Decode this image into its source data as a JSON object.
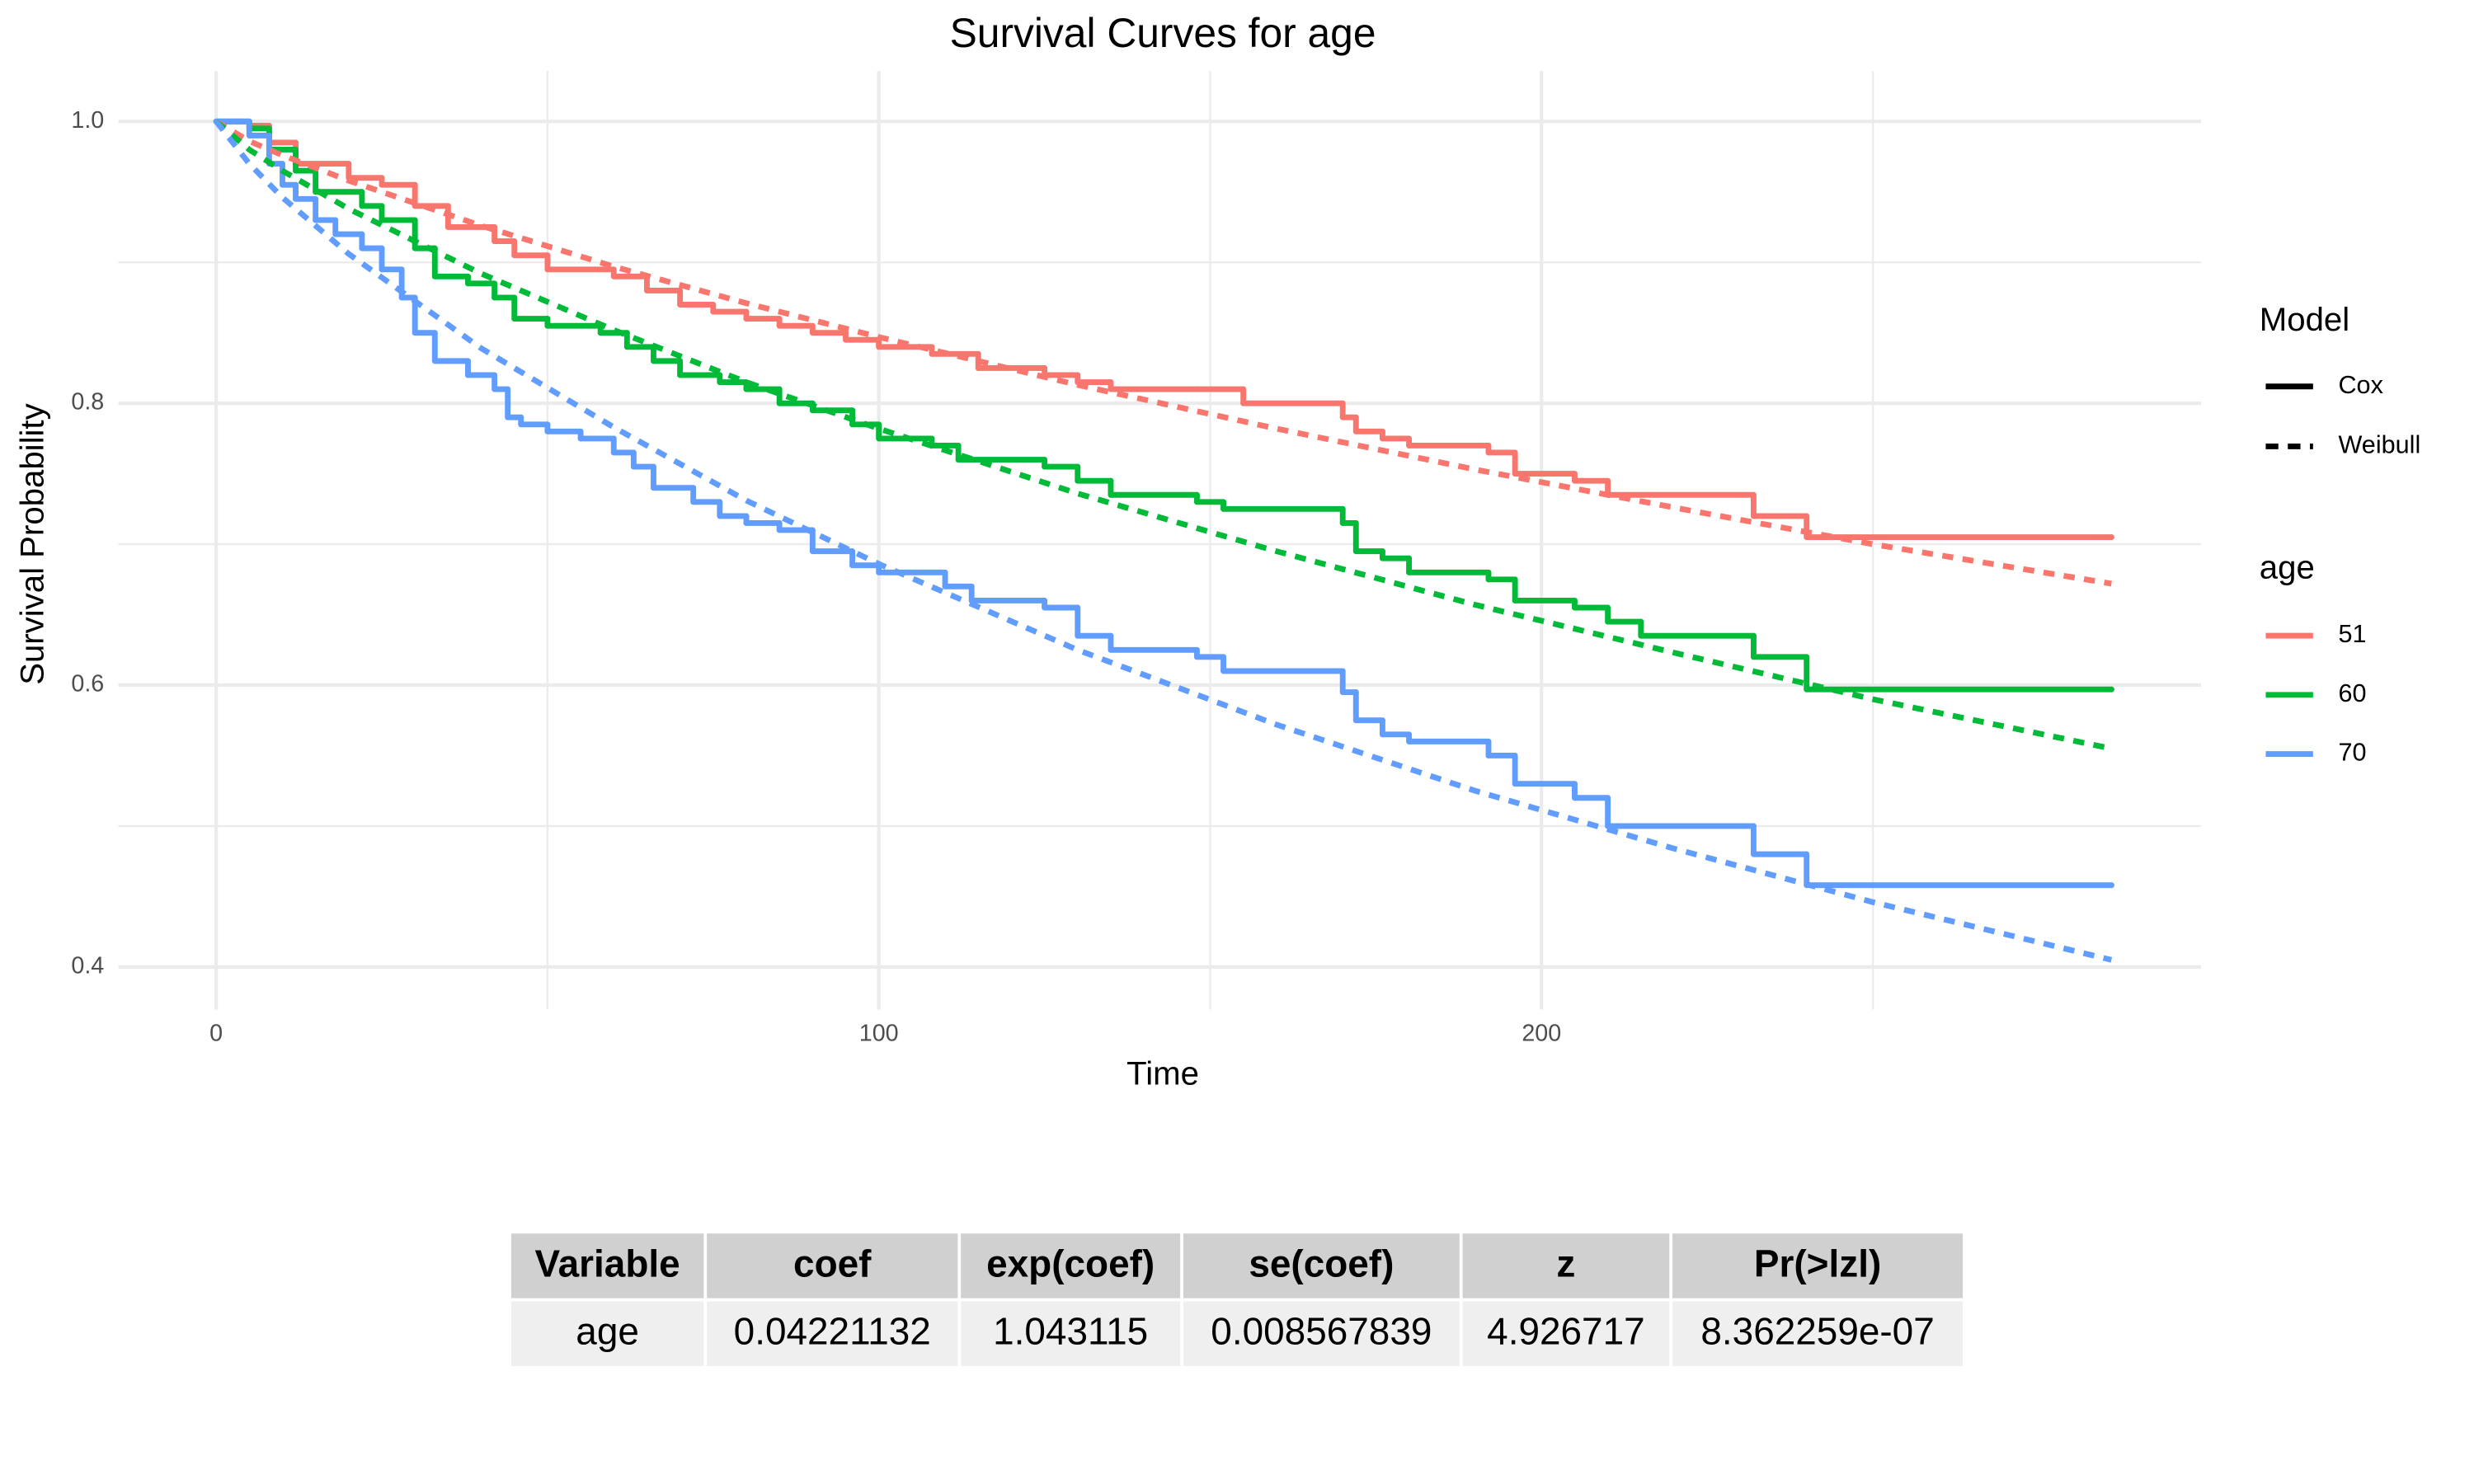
{
  "chart_data": {
    "type": "survival",
    "title": "Survival Curves for age",
    "x_label": "Time",
    "y_label": "Survival Probability",
    "xlim": [
      -14.76,
      299.52
    ],
    "ylim": [
      0.3698,
      1.0358
    ],
    "xticks": [
      0,
      100,
      200
    ],
    "yticks": [
      0.4,
      0.6,
      0.8,
      {
        "value": 1,
        "label": "1.0"
      }
    ],
    "minor_xticks": [
      50,
      150,
      250
    ],
    "minor_yticks": [
      0.5,
      0.7,
      0.9
    ],
    "grid": true,
    "legend": {
      "linetype_title": "Model",
      "linetypes": [
        {
          "label": "Cox",
          "dash": false
        },
        {
          "label": "Weibull",
          "dash": true
        }
      ],
      "color_title": "age",
      "colors": [
        {
          "label": "51",
          "color": "#F8766D"
        },
        {
          "label": "60",
          "color": "#00BA38"
        },
        {
          "label": "70",
          "color": "#619CFF"
        }
      ]
    },
    "series": [
      {
        "color": "#F8766D",
        "dash": false,
        "step": true,
        "x": [
          0,
          5,
          8,
          12,
          20,
          25,
          30,
          35,
          42,
          45,
          50,
          60,
          65,
          70,
          75,
          80,
          85,
          90,
          95,
          100,
          108,
          115,
          125,
          130,
          135,
          148,
          155,
          170,
          172,
          176,
          180,
          192,
          196,
          205,
          210,
          232,
          240,
          286
        ],
        "values": [
          1,
          0.997,
          0.985,
          0.97,
          0.96,
          0.955,
          0.94,
          0.925,
          0.915,
          0.905,
          0.895,
          0.89,
          0.88,
          0.87,
          0.865,
          0.86,
          0.855,
          0.85,
          0.845,
          0.84,
          0.835,
          0.825,
          0.82,
          0.815,
          0.81,
          0.81,
          0.8,
          0.79,
          0.78,
          0.775,
          0.77,
          0.765,
          0.75,
          0.745,
          0.735,
          0.72,
          0.705,
          0.705
        ]
      },
      {
        "color": "#00BA38",
        "dash": false,
        "step": true,
        "x": [
          0,
          5,
          8,
          12,
          15,
          22,
          25,
          30,
          33,
          38,
          42,
          45,
          50,
          58,
          62,
          66,
          70,
          76,
          80,
          85,
          90,
          96,
          100,
          108,
          112,
          125,
          130,
          135,
          148,
          152,
          170,
          172,
          176,
          180,
          192,
          196,
          205,
          210,
          215,
          232,
          240,
          286
        ],
        "values": [
          1,
          0.995,
          0.98,
          0.965,
          0.95,
          0.94,
          0.93,
          0.91,
          0.89,
          0.885,
          0.875,
          0.86,
          0.855,
          0.85,
          0.84,
          0.83,
          0.82,
          0.815,
          0.81,
          0.8,
          0.795,
          0.785,
          0.775,
          0.77,
          0.76,
          0.755,
          0.745,
          0.735,
          0.73,
          0.725,
          0.715,
          0.695,
          0.69,
          0.68,
          0.675,
          0.66,
          0.655,
          0.645,
          0.635,
          0.62,
          0.597,
          0.597
        ]
      },
      {
        "color": "#619CFF",
        "dash": false,
        "step": true,
        "x": [
          0,
          5,
          8,
          10,
          12,
          15,
          18,
          22,
          25,
          28,
          30,
          33,
          38,
          42,
          44,
          46,
          50,
          55,
          60,
          63,
          66,
          72,
          76,
          80,
          85,
          90,
          96,
          100,
          110,
          114,
          125,
          130,
          135,
          148,
          152,
          170,
          172,
          176,
          180,
          192,
          196,
          205,
          210,
          232,
          240,
          286
        ],
        "values": [
          1,
          0.99,
          0.97,
          0.955,
          0.945,
          0.93,
          0.92,
          0.91,
          0.895,
          0.875,
          0.85,
          0.83,
          0.82,
          0.81,
          0.79,
          0.785,
          0.78,
          0.775,
          0.765,
          0.755,
          0.74,
          0.73,
          0.72,
          0.715,
          0.71,
          0.695,
          0.685,
          0.68,
          0.67,
          0.66,
          0.655,
          0.635,
          0.625,
          0.62,
          0.61,
          0.595,
          0.575,
          0.565,
          0.56,
          0.55,
          0.53,
          0.52,
          0.5,
          0.48,
          0.458,
          0.458
        ]
      },
      {
        "color": "#F8766D",
        "dash": true,
        "step": false,
        "x": [
          0,
          5,
          10,
          20,
          40,
          60,
          80,
          100,
          130,
          160,
          190,
          220,
          250,
          286
        ],
        "values": [
          1,
          0.986,
          0.976,
          0.958,
          0.926,
          0.897,
          0.871,
          0.847,
          0.813,
          0.782,
          0.753,
          0.726,
          0.7,
          0.672
        ]
      },
      {
        "color": "#00BA38",
        "dash": true,
        "step": false,
        "x": [
          0,
          5,
          10,
          20,
          40,
          60,
          80,
          100,
          130,
          160,
          190,
          220,
          250,
          286
        ],
        "values": [
          1,
          0.98,
          0.965,
          0.938,
          0.892,
          0.852,
          0.815,
          0.782,
          0.736,
          0.695,
          0.657,
          0.623,
          0.59,
          0.555
        ]
      },
      {
        "color": "#619CFF",
        "dash": true,
        "step": false,
        "x": [
          0,
          5,
          10,
          20,
          40,
          60,
          80,
          100,
          130,
          160,
          190,
          220,
          250,
          286
        ],
        "values": [
          1,
          0.97,
          0.946,
          0.906,
          0.839,
          0.783,
          0.731,
          0.686,
          0.625,
          0.572,
          0.525,
          0.484,
          0.446,
          0.405
        ]
      }
    ]
  },
  "table": {
    "columns": [
      "Variable",
      "coef",
      "exp(coef)",
      "se(coef)",
      "z",
      "Pr(>lzl)"
    ],
    "rows": [
      [
        "age",
        "0.04221132",
        "1.043115",
        "0.008567839",
        "4.926717",
        "8.362259e-07"
      ]
    ]
  }
}
